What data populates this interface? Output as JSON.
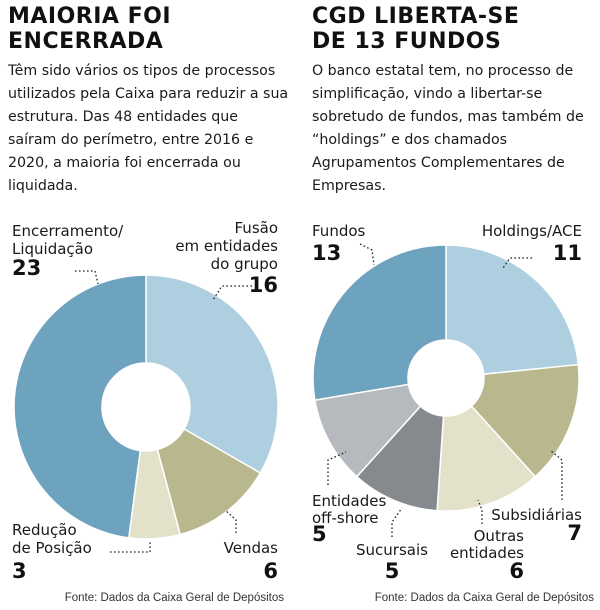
{
  "left_panel": {
    "title_line1": "MAIORIA FOI",
    "title_line2": "ENCERRADA",
    "description": "Têm sido vários os tipos de processos utilizados pela Caixa para reduzir a sua estrutura. Das 48 entidades que saíram do perímetro, entre 2016 e 2020, a maioria foi encerrada ou liquidada.",
    "source": "Fonte: Dados da Caixa Geral de Depósitos"
  },
  "right_panel": {
    "title_line1": "CGD LIBERTA-SE",
    "title_line2": "DE 13 FUNDOS",
    "description": "O banco estatal tem, no processo de simplificação, vindo a libertar-se sobretudo de fundos, mas também de “holdings” e dos chamados Agrupamentos Complementares de Empresas.",
    "source": "Fonte: Dados da Caixa Geral de Depósitos"
  },
  "chart_data": [
    {
      "type": "pie",
      "categories": [
        "Fusão em entidades do grupo",
        "Vendas",
        "Redução de Posição",
        "Encerramento/ Liquidação"
      ],
      "values": [
        16,
        6,
        3,
        23
      ],
      "label_lines": [
        [
          "Fusão",
          "em entidades",
          "do grupo"
        ],
        [
          "Vendas"
        ],
        [
          "Redução",
          "de Posição"
        ],
        [
          "Encerramento/",
          "Liquidação"
        ]
      ],
      "colors": [
        "#aecfdf",
        "#b8b78d",
        "#e3e1ca",
        "#6ea3bf"
      ],
      "donut": true
    },
    {
      "type": "pie",
      "categories": [
        "Holdings/ACE",
        "Subsidiárias",
        "Outras entidades",
        "Sucursais",
        "Entidades off-shore",
        "Fundos"
      ],
      "values": [
        11,
        7,
        6,
        5,
        5,
        13
      ],
      "label_lines": [
        [
          "Holdings/ACE"
        ],
        [
          "Subsidiárias"
        ],
        [
          "Outras",
          "entidades"
        ],
        [
          "Sucursais"
        ],
        [
          "Entidades",
          "off-shore"
        ],
        [
          "Fundos"
        ]
      ],
      "colors": [
        "#aecfdf",
        "#b8b78d",
        "#e3e1ca",
        "#86898d",
        "#b6b9bd",
        "#6ea3bf"
      ],
      "donut": true
    }
  ]
}
